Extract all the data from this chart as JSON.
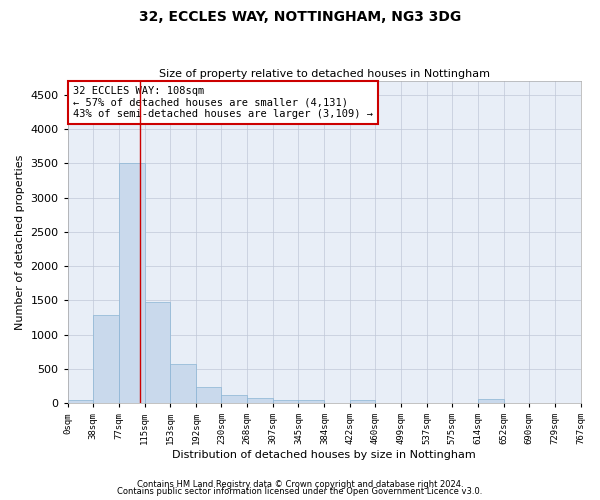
{
  "title": "32, ECCLES WAY, NOTTINGHAM, NG3 3DG",
  "subtitle": "Size of property relative to detached houses in Nottingham",
  "xlabel": "Distribution of detached houses by size in Nottingham",
  "ylabel": "Number of detached properties",
  "bar_color": "#c9d9ec",
  "bar_edge_color": "#8ab4d4",
  "grid_color": "#c0c8d8",
  "background_color": "#e8eef7",
  "bin_edges": [
    0,
    38,
    77,
    115,
    153,
    192,
    230,
    268,
    307,
    345,
    384,
    422,
    460,
    499,
    537,
    575,
    614,
    652,
    690,
    729,
    767
  ],
  "bin_labels": [
    "0sqm",
    "38sqm",
    "77sqm",
    "115sqm",
    "153sqm",
    "192sqm",
    "230sqm",
    "268sqm",
    "307sqm",
    "345sqm",
    "384sqm",
    "422sqm",
    "460sqm",
    "499sqm",
    "537sqm",
    "575sqm",
    "614sqm",
    "652sqm",
    "690sqm",
    "729sqm",
    "767sqm"
  ],
  "bar_heights": [
    40,
    1280,
    3500,
    1480,
    575,
    240,
    115,
    80,
    50,
    40,
    0,
    50,
    0,
    0,
    0,
    0,
    60,
    0,
    0,
    0
  ],
  "ylim": [
    0,
    4700
  ],
  "yticks": [
    0,
    500,
    1000,
    1500,
    2000,
    2500,
    3000,
    3500,
    4000,
    4500
  ],
  "property_line_x": 108,
  "annotation_text": "32 ECCLES WAY: 108sqm\n← 57% of detached houses are smaller (4,131)\n43% of semi-detached houses are larger (3,109) →",
  "annotation_box_color": "#ffffff",
  "annotation_box_edge": "#cc0000",
  "footer_line1": "Contains HM Land Registry data © Crown copyright and database right 2024.",
  "footer_line2": "Contains public sector information licensed under the Open Government Licence v3.0."
}
